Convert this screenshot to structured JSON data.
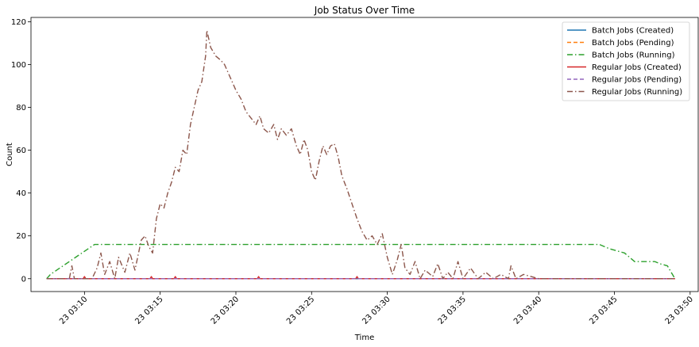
{
  "chart_data": {
    "type": "line",
    "title": "Job Status Over Time",
    "xlabel": "Time",
    "ylabel": "Count",
    "xlim": [
      "2000-01-23T03:06:28",
      "2000-01-23T03:50:32"
    ],
    "ylim": [
      -6,
      122
    ],
    "xticks": [
      {
        "t": "2000-01-23T03:10:00",
        "label": "23 03:10"
      },
      {
        "t": "2000-01-23T03:15:00",
        "label": "23 03:15"
      },
      {
        "t": "2000-01-23T03:20:00",
        "label": "23 03:20"
      },
      {
        "t": "2000-01-23T03:25:00",
        "label": "23 03:25"
      },
      {
        "t": "2000-01-23T03:30:00",
        "label": "23 03:30"
      },
      {
        "t": "2000-01-23T03:35:00",
        "label": "23 03:35"
      },
      {
        "t": "2000-01-23T03:40:00",
        "label": "23 03:40"
      },
      {
        "t": "2000-01-23T03:45:00",
        "label": "23 03:45"
      },
      {
        "t": "2000-01-23T03:50:00",
        "label": "23 03:50"
      }
    ],
    "yticks": [
      0,
      20,
      40,
      60,
      80,
      100,
      120
    ],
    "legend": {
      "placement": "top-right"
    },
    "series": [
      {
        "name": "Batch Jobs (Created)",
        "color": "#1f77b4",
        "dash": "solid",
        "points": [
          [
            "2000-01-23T03:07:30",
            0
          ],
          [
            "2000-01-23T03:49:00",
            0
          ]
        ]
      },
      {
        "name": "Batch Jobs (Pending)",
        "color": "#ff7f0e",
        "dash": "dashed",
        "points": [
          [
            "2000-01-23T03:07:30",
            0
          ],
          [
            "2000-01-23T03:49:00",
            0
          ]
        ]
      },
      {
        "name": "Batch Jobs (Running)",
        "color": "#2ca02c",
        "dash": "dashdot",
        "points": [
          [
            "2000-01-23T03:07:30",
            0
          ],
          [
            "2000-01-23T03:07:45",
            2
          ],
          [
            "2000-01-23T03:08:10",
            4
          ],
          [
            "2000-01-23T03:08:35",
            6
          ],
          [
            "2000-01-23T03:09:00",
            8
          ],
          [
            "2000-01-23T03:09:25",
            10
          ],
          [
            "2000-01-23T03:09:50",
            12
          ],
          [
            "2000-01-23T03:10:15",
            14
          ],
          [
            "2000-01-23T03:10:40",
            16
          ],
          [
            "2000-01-23T03:44:00",
            16
          ],
          [
            "2000-01-23T03:44:20",
            15
          ],
          [
            "2000-01-23T03:44:40",
            14
          ],
          [
            "2000-01-23T03:45:10",
            13
          ],
          [
            "2000-01-23T03:45:40",
            12
          ],
          [
            "2000-01-23T03:46:00",
            10
          ],
          [
            "2000-01-23T03:46:20",
            8
          ],
          [
            "2000-01-23T03:47:40",
            8
          ],
          [
            "2000-01-23T03:48:00",
            7
          ],
          [
            "2000-01-23T03:48:30",
            6
          ],
          [
            "2000-01-23T03:48:45",
            3
          ],
          [
            "2000-01-23T03:49:00",
            0
          ]
        ]
      },
      {
        "name": "Regular Jobs (Created)",
        "color": "#d62728",
        "dash": "solid",
        "points": [
          [
            "2000-01-23T03:07:30",
            0
          ],
          [
            "2000-01-23T03:09:55",
            0
          ],
          [
            "2000-01-23T03:10:00",
            1
          ],
          [
            "2000-01-23T03:10:05",
            0
          ],
          [
            "2000-01-23T03:14:20",
            0
          ],
          [
            "2000-01-23T03:14:25",
            1
          ],
          [
            "2000-01-23T03:14:30",
            0
          ],
          [
            "2000-01-23T03:15:55",
            0
          ],
          [
            "2000-01-23T03:16:00",
            1
          ],
          [
            "2000-01-23T03:16:05",
            0
          ],
          [
            "2000-01-23T03:21:25",
            0
          ],
          [
            "2000-01-23T03:21:30",
            1
          ],
          [
            "2000-01-23T03:21:35",
            0
          ],
          [
            "2000-01-23T03:27:55",
            0
          ],
          [
            "2000-01-23T03:28:00",
            1
          ],
          [
            "2000-01-23T03:28:05",
            0
          ],
          [
            "2000-01-23T03:49:00",
            0
          ]
        ]
      },
      {
        "name": "Regular Jobs (Pending)",
        "color": "#9467bd",
        "dash": "dashed",
        "points": [
          [
            "2000-01-23T03:07:30",
            0
          ],
          [
            "2000-01-23T03:49:00",
            0
          ]
        ]
      },
      {
        "name": "Regular Jobs (Running)",
        "color": "#8c564b",
        "dash": "dashdot",
        "points": [
          [
            "2000-01-23T03:07:30",
            0
          ],
          [
            "2000-01-23T03:09:00",
            0
          ],
          [
            "2000-01-23T03:09:10",
            6
          ],
          [
            "2000-01-23T03:09:20",
            0
          ],
          [
            "2000-01-23T03:10:30",
            0
          ],
          [
            "2000-01-23T03:10:50",
            5
          ],
          [
            "2000-01-23T03:11:05",
            12
          ],
          [
            "2000-01-23T03:11:20",
            2
          ],
          [
            "2000-01-23T03:11:40",
            8
          ],
          [
            "2000-01-23T03:12:00",
            0
          ],
          [
            "2000-01-23T03:12:15",
            10
          ],
          [
            "2000-01-23T03:12:40",
            3
          ],
          [
            "2000-01-23T03:13:00",
            12
          ],
          [
            "2000-01-23T03:13:20",
            4
          ],
          [
            "2000-01-23T03:13:45",
            18
          ],
          [
            "2000-01-23T03:14:00",
            20
          ],
          [
            "2000-01-23T03:14:15",
            15
          ],
          [
            "2000-01-23T03:14:30",
            12
          ],
          [
            "2000-01-23T03:14:45",
            28
          ],
          [
            "2000-01-23T03:15:00",
            35
          ],
          [
            "2000-01-23T03:15:15",
            33
          ],
          [
            "2000-01-23T03:15:30",
            40
          ],
          [
            "2000-01-23T03:15:45",
            45
          ],
          [
            "2000-01-23T03:16:00",
            52
          ],
          [
            "2000-01-23T03:16:15",
            50
          ],
          [
            "2000-01-23T03:16:30",
            60
          ],
          [
            "2000-01-23T03:16:45",
            58
          ],
          [
            "2000-01-23T03:17:00",
            72
          ],
          [
            "2000-01-23T03:17:15",
            80
          ],
          [
            "2000-01-23T03:17:30",
            88
          ],
          [
            "2000-01-23T03:17:45",
            92
          ],
          [
            "2000-01-23T03:18:00",
            104
          ],
          [
            "2000-01-23T03:18:05",
            116
          ],
          [
            "2000-01-23T03:18:20",
            108
          ],
          [
            "2000-01-23T03:18:40",
            104
          ],
          [
            "2000-01-23T03:19:00",
            102
          ],
          [
            "2000-01-23T03:19:15",
            100
          ],
          [
            "2000-01-23T03:19:30",
            96
          ],
          [
            "2000-01-23T03:19:45",
            92
          ],
          [
            "2000-01-23T03:20:00",
            88
          ],
          [
            "2000-01-23T03:20:20",
            84
          ],
          [
            "2000-01-23T03:20:40",
            78
          ],
          [
            "2000-01-23T03:21:00",
            75
          ],
          [
            "2000-01-23T03:21:20",
            72
          ],
          [
            "2000-01-23T03:21:35",
            76
          ],
          [
            "2000-01-23T03:21:50",
            70
          ],
          [
            "2000-01-23T03:22:10",
            68
          ],
          [
            "2000-01-23T03:22:30",
            72
          ],
          [
            "2000-01-23T03:22:45",
            65
          ],
          [
            "2000-01-23T03:23:00",
            70
          ],
          [
            "2000-01-23T03:23:20",
            67
          ],
          [
            "2000-01-23T03:23:40",
            70
          ],
          [
            "2000-01-23T03:24:00",
            62
          ],
          [
            "2000-01-23T03:24:15",
            58
          ],
          [
            "2000-01-23T03:24:30",
            65
          ],
          [
            "2000-01-23T03:24:45",
            60
          ],
          [
            "2000-01-23T03:25:00",
            50
          ],
          [
            "2000-01-23T03:25:15",
            46
          ],
          [
            "2000-01-23T03:25:30",
            55
          ],
          [
            "2000-01-23T03:25:45",
            62
          ],
          [
            "2000-01-23T03:26:00",
            58
          ],
          [
            "2000-01-23T03:26:15",
            62
          ],
          [
            "2000-01-23T03:26:30",
            63
          ],
          [
            "2000-01-23T03:26:45",
            57
          ],
          [
            "2000-01-23T03:27:00",
            48
          ],
          [
            "2000-01-23T03:27:20",
            42
          ],
          [
            "2000-01-23T03:27:40",
            35
          ],
          [
            "2000-01-23T03:28:00",
            28
          ],
          [
            "2000-01-23T03:28:20",
            22
          ],
          [
            "2000-01-23T03:28:40",
            18
          ],
          [
            "2000-01-23T03:29:00",
            20
          ],
          [
            "2000-01-23T03:29:20",
            16
          ],
          [
            "2000-01-23T03:29:40",
            21
          ],
          [
            "2000-01-23T03:30:00",
            10
          ],
          [
            "2000-01-23T03:30:20",
            2
          ],
          [
            "2000-01-23T03:30:40",
            9
          ],
          [
            "2000-01-23T03:30:55",
            16
          ],
          [
            "2000-01-23T03:31:10",
            5
          ],
          [
            "2000-01-23T03:31:30",
            2
          ],
          [
            "2000-01-23T03:31:50",
            8
          ],
          [
            "2000-01-23T03:32:10",
            0
          ],
          [
            "2000-01-23T03:32:30",
            4
          ],
          [
            "2000-01-23T03:33:00",
            1
          ],
          [
            "2000-01-23T03:33:20",
            7
          ],
          [
            "2000-01-23T03:33:40",
            0
          ],
          [
            "2000-01-23T03:34:00",
            3
          ],
          [
            "2000-01-23T03:34:20",
            0
          ],
          [
            "2000-01-23T03:34:40",
            8
          ],
          [
            "2000-01-23T03:35:00",
            0
          ],
          [
            "2000-01-23T03:35:30",
            5
          ],
          [
            "2000-01-23T03:36:00",
            0
          ],
          [
            "2000-01-23T03:36:30",
            3
          ],
          [
            "2000-01-23T03:37:00",
            0
          ],
          [
            "2000-01-23T03:37:30",
            2
          ],
          [
            "2000-01-23T03:38:00",
            0
          ],
          [
            "2000-01-23T03:38:10",
            6
          ],
          [
            "2000-01-23T03:38:30",
            0
          ],
          [
            "2000-01-23T03:39:00",
            2
          ],
          [
            "2000-01-23T03:39:30",
            1
          ],
          [
            "2000-01-23T03:40:00",
            0
          ],
          [
            "2000-01-23T03:49:00",
            0
          ]
        ]
      }
    ]
  }
}
